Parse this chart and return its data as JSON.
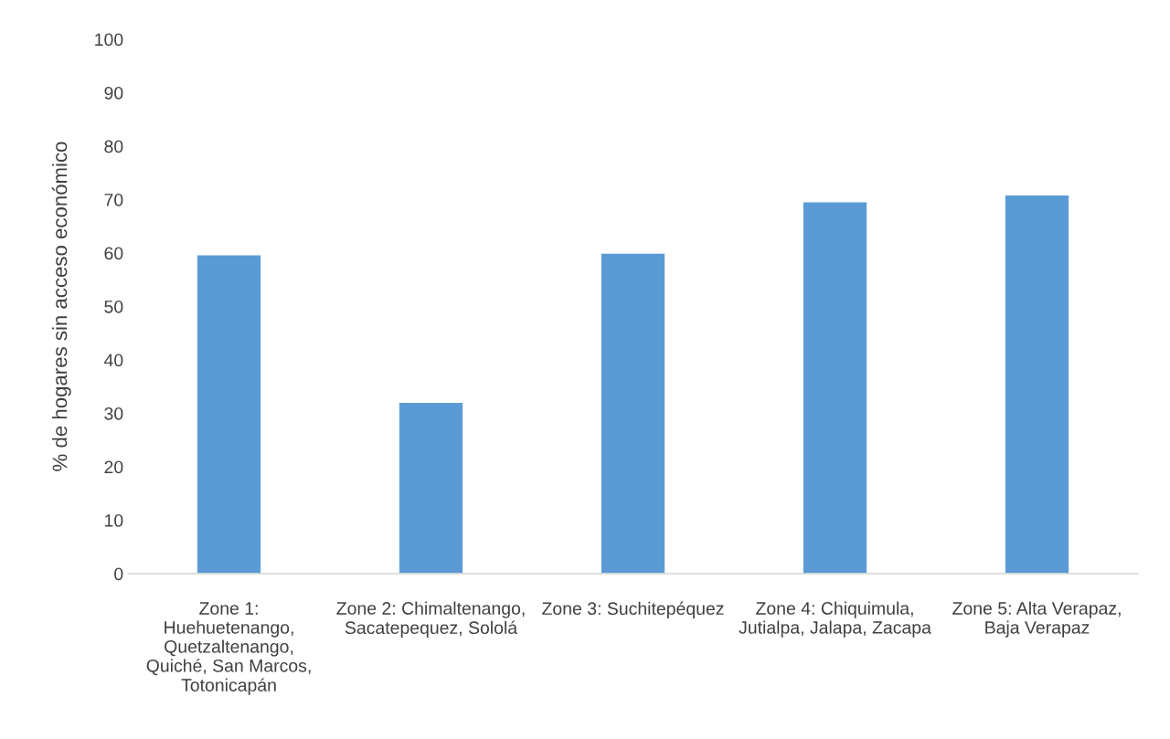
{
  "chart_data": {
    "type": "bar",
    "ylabel": "% de hogares sin acceso económico",
    "categories": [
      "Zone 1:\nHuehuetenango,\nQuetzaltenango,\nQuiché, San Marcos,\nTotonicapán",
      "Zone 2: Chimaltenango,\nSacatepequez, Sololá",
      "Zone 3: Suchitepéquez",
      "Zone 4: Chiquimula,\nJutialpa, Jalapa, Zacapa",
      "Zone 5: Alta Verapaz,\nBaja Verapaz"
    ],
    "values": [
      59.7,
      32.1,
      60.0,
      69.6,
      70.9
    ],
    "color": "#5b9bd5",
    "ylim": [
      0,
      100
    ],
    "yticks": [
      0,
      10,
      20,
      30,
      40,
      50,
      60,
      70,
      80,
      90,
      100
    ],
    "grid": false
  }
}
